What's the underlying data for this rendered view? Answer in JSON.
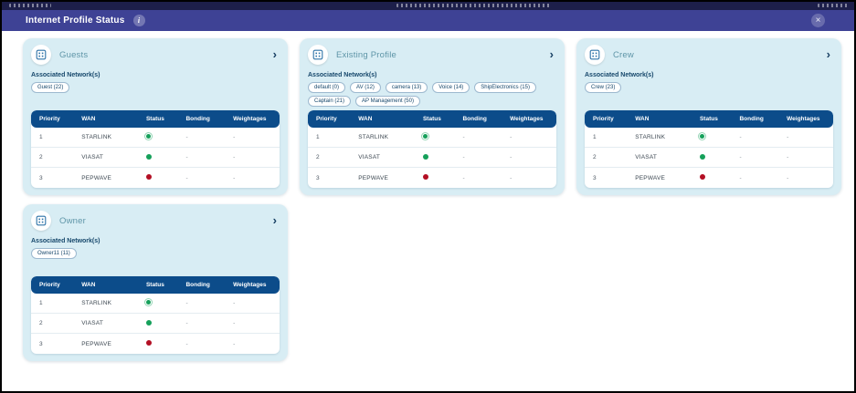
{
  "header": {
    "title": "Internet Profile Status",
    "info_icon": "i",
    "close_icon": "×"
  },
  "labels": {
    "associated_networks": "Associated Network(s)"
  },
  "table": {
    "columns": [
      "Priority",
      "WAN",
      "Status",
      "Bonding",
      "Weightages"
    ],
    "rows": [
      {
        "priority": "1",
        "wan": "STARLINK",
        "status": "up",
        "status_style": "ring",
        "bonding": "-",
        "weightages": "-"
      },
      {
        "priority": "2",
        "wan": "VIASAT",
        "status": "up",
        "status_style": "solid",
        "bonding": "-",
        "weightages": "-"
      },
      {
        "priority": "3",
        "wan": "PEPWAVE",
        "status": "down",
        "status_style": "solid",
        "bonding": "-",
        "weightages": "-"
      }
    ]
  },
  "cards": [
    {
      "title": "Guests",
      "chips": [
        "Guest (22)"
      ]
    },
    {
      "title": "Existing Profile",
      "chips": [
        "default (0)",
        "AV (12)",
        "camera (13)",
        "Voice (14)",
        "ShipElectronics (15)",
        "Captain (21)",
        "AP Management (50)"
      ]
    },
    {
      "title": "Crew",
      "chips": [
        "Crew (23)"
      ]
    },
    {
      "title": "Owner",
      "chips": [
        "Owner11 (11)"
      ]
    }
  ],
  "colors": {
    "header_bg": "#3e4295",
    "card_bg": "#d8edf4",
    "table_header_bg": "#0c4c8a",
    "status_up": "#15a05a",
    "status_down": "#b30f24"
  }
}
